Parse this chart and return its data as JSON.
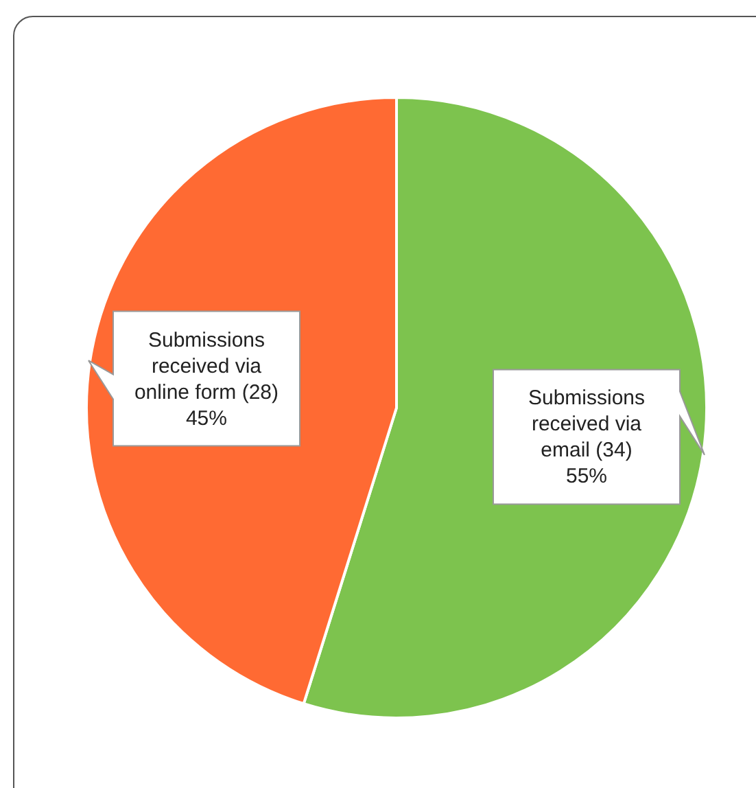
{
  "chart_data": {
    "type": "pie",
    "categories": [
      "Submissions received via email",
      "Submissions received via online form"
    ],
    "values": [
      34,
      28
    ],
    "colors": [
      "#7dc34e",
      "#ff6a33"
    ],
    "value_labels": [
      "(34) 55%",
      "(28) 45%"
    ],
    "legend": false
  }
}
